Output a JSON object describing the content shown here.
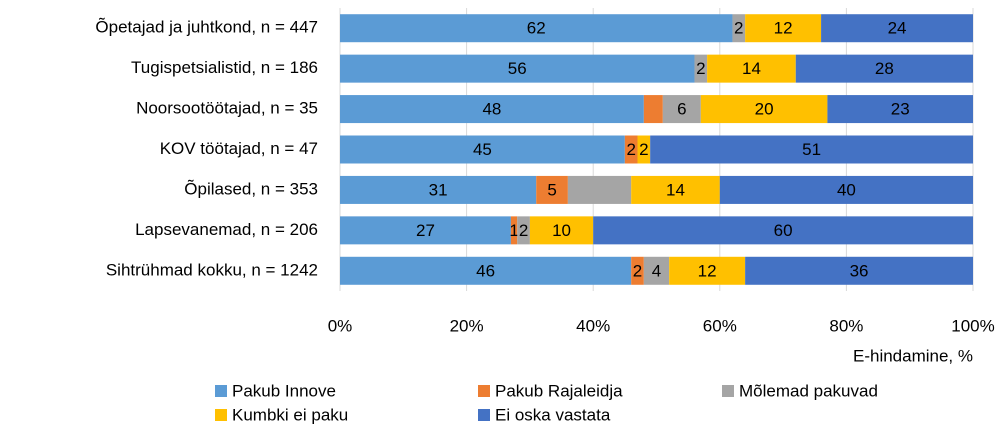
{
  "chart_data": {
    "type": "stacked-bar-horizontal",
    "categories": [
      "Õpetajad ja juhtkond, n = 447",
      "Tugispetsialistid, n = 186",
      "Noorsootöötajad, n = 35",
      "KOV töötajad, n = 47",
      "Õpilased, n = 353",
      "Lapsevanemad, n = 206",
      "Sihtrühmad kokku, n = 1242"
    ],
    "series": [
      {
        "name": "Pakub Innove",
        "color": "#5B9BD5",
        "values": [
          62,
          56,
          48,
          45,
          31,
          27,
          46
        ],
        "value_labels": [
          "62",
          "56",
          "48",
          "45",
          "31",
          "27",
          "46"
        ]
      },
      {
        "name": "Pakub Rajaleidja",
        "color": "#ED7D31",
        "values": [
          0,
          0,
          3,
          2,
          5,
          1,
          2
        ],
        "value_labels": [
          null,
          null,
          null,
          "2",
          "5",
          "1",
          "2"
        ]
      },
      {
        "name": "Mõlemad pakuvad",
        "color": "#A5A5A5",
        "values": [
          2,
          2,
          6,
          0,
          10,
          2,
          4
        ],
        "value_labels": [
          "2",
          "2",
          "6",
          null,
          null,
          "2",
          "4"
        ]
      },
      {
        "name": "Kumbki ei paku",
        "color": "#FFC000",
        "values": [
          12,
          14,
          20,
          2,
          14,
          10,
          12
        ],
        "value_labels": [
          "12",
          "14",
          "20",
          "2",
          "14",
          "10",
          "12"
        ]
      },
      {
        "name": "Ei oska vastata",
        "color": "#4472C4",
        "values": [
          24,
          28,
          23,
          51,
          40,
          60,
          36
        ],
        "value_labels": [
          "24",
          "28",
          "23",
          "51",
          "40",
          "60",
          "36"
        ]
      }
    ],
    "xlabel": "E-hindamine, %",
    "xlim": [
      0,
      100
    ],
    "xticks": [
      {
        "value": 0,
        "label": "0%"
      },
      {
        "value": 20,
        "label": "20%"
      },
      {
        "value": 40,
        "label": "40%"
      },
      {
        "value": 60,
        "label": "60%"
      },
      {
        "value": 80,
        "label": "80%"
      },
      {
        "value": 100,
        "label": "100%"
      }
    ],
    "grid": true,
    "legend": "bottom"
  }
}
